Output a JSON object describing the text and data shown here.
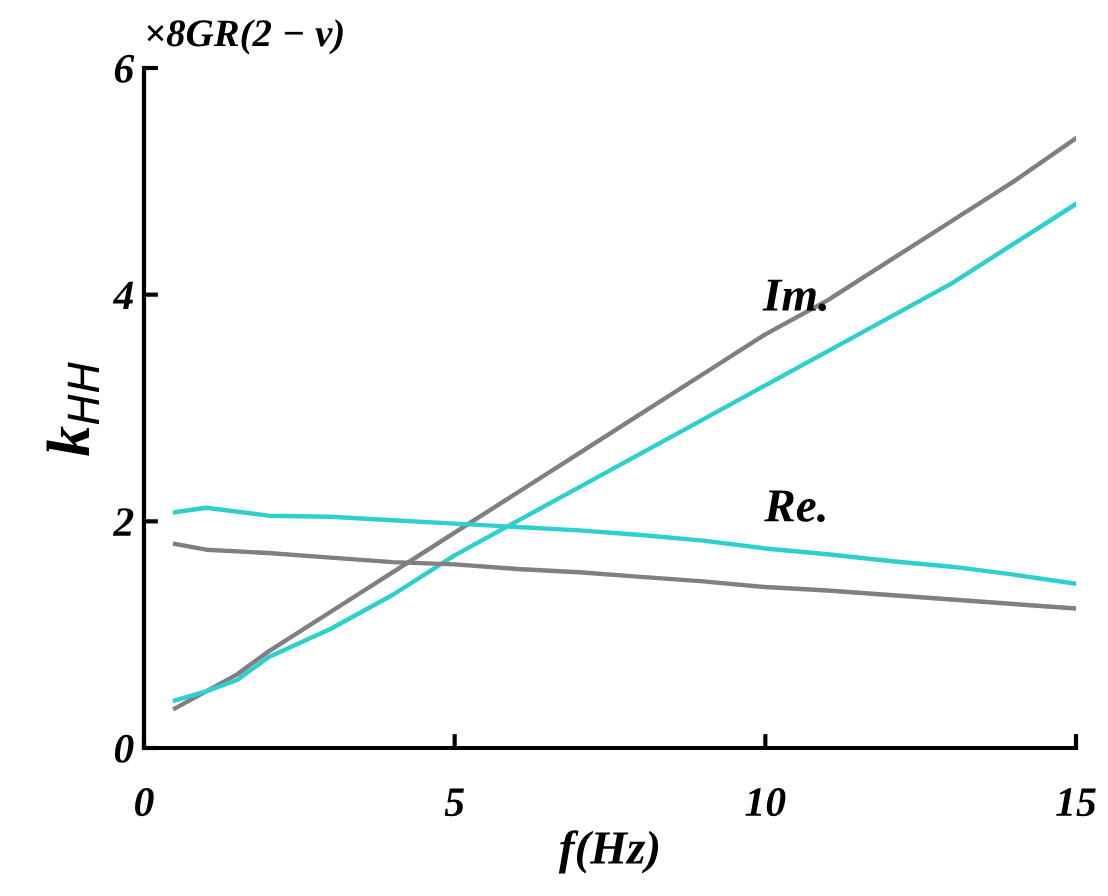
{
  "chart_data": {
    "type": "line",
    "xlabel": "f(Hz)",
    "ylabel": "k$_{HH}$",
    "xlim": [
      0,
      15
    ],
    "ylim": [
      0,
      6
    ],
    "xticks": [
      0,
      5,
      10,
      15
    ],
    "yticks": [
      0,
      2,
      4,
      6
    ],
    "grid": false,
    "legend": false,
    "marker": "none",
    "line_style": "solid",
    "annotations": [
      "×8GR(2 − ν)",
      "Im.",
      "Re."
    ],
    "series": [
      {
        "color": "#808080",
        "x": [
          0.5,
          1,
          1.5,
          2,
          3,
          4,
          5,
          6,
          7,
          8,
          9,
          10,
          11,
          12,
          13,
          14,
          15
        ],
        "values": [
          0.35,
          0.5,
          0.65,
          0.85,
          1.2,
          1.55,
          1.9,
          2.25,
          2.6,
          2.95,
          3.3,
          3.65,
          3.95,
          4.3,
          4.65,
          5.0,
          5.38
        ]
      },
      {
        "color": "#2ecfcf",
        "x": [
          0.5,
          1,
          1.5,
          2,
          3,
          4,
          5,
          6,
          7,
          8,
          9,
          10,
          11,
          12,
          13,
          14,
          15
        ],
        "values": [
          0.42,
          0.5,
          0.6,
          0.8,
          1.05,
          1.35,
          1.7,
          2.0,
          2.3,
          2.6,
          2.9,
          3.2,
          3.5,
          3.8,
          4.1,
          4.45,
          4.8
        ]
      },
      {
        "color": "#808080",
        "x": [
          0.5,
          1,
          2,
          3,
          4,
          5,
          6,
          7,
          8,
          9,
          10,
          11,
          12,
          13,
          14,
          15
        ],
        "values": [
          1.8,
          1.75,
          1.72,
          1.68,
          1.64,
          1.62,
          1.58,
          1.55,
          1.51,
          1.47,
          1.42,
          1.39,
          1.35,
          1.31,
          1.27,
          1.23
        ]
      },
      {
        "color": "#2ecfcf",
        "x": [
          0.5,
          1,
          2,
          3,
          4,
          5,
          6,
          7,
          8,
          9,
          10,
          11,
          12,
          13,
          14,
          15
        ],
        "values": [
          2.08,
          2.12,
          2.05,
          2.04,
          2.01,
          1.98,
          1.95,
          1.92,
          1.88,
          1.83,
          1.76,
          1.71,
          1.65,
          1.6,
          1.53,
          1.45
        ]
      }
    ]
  }
}
